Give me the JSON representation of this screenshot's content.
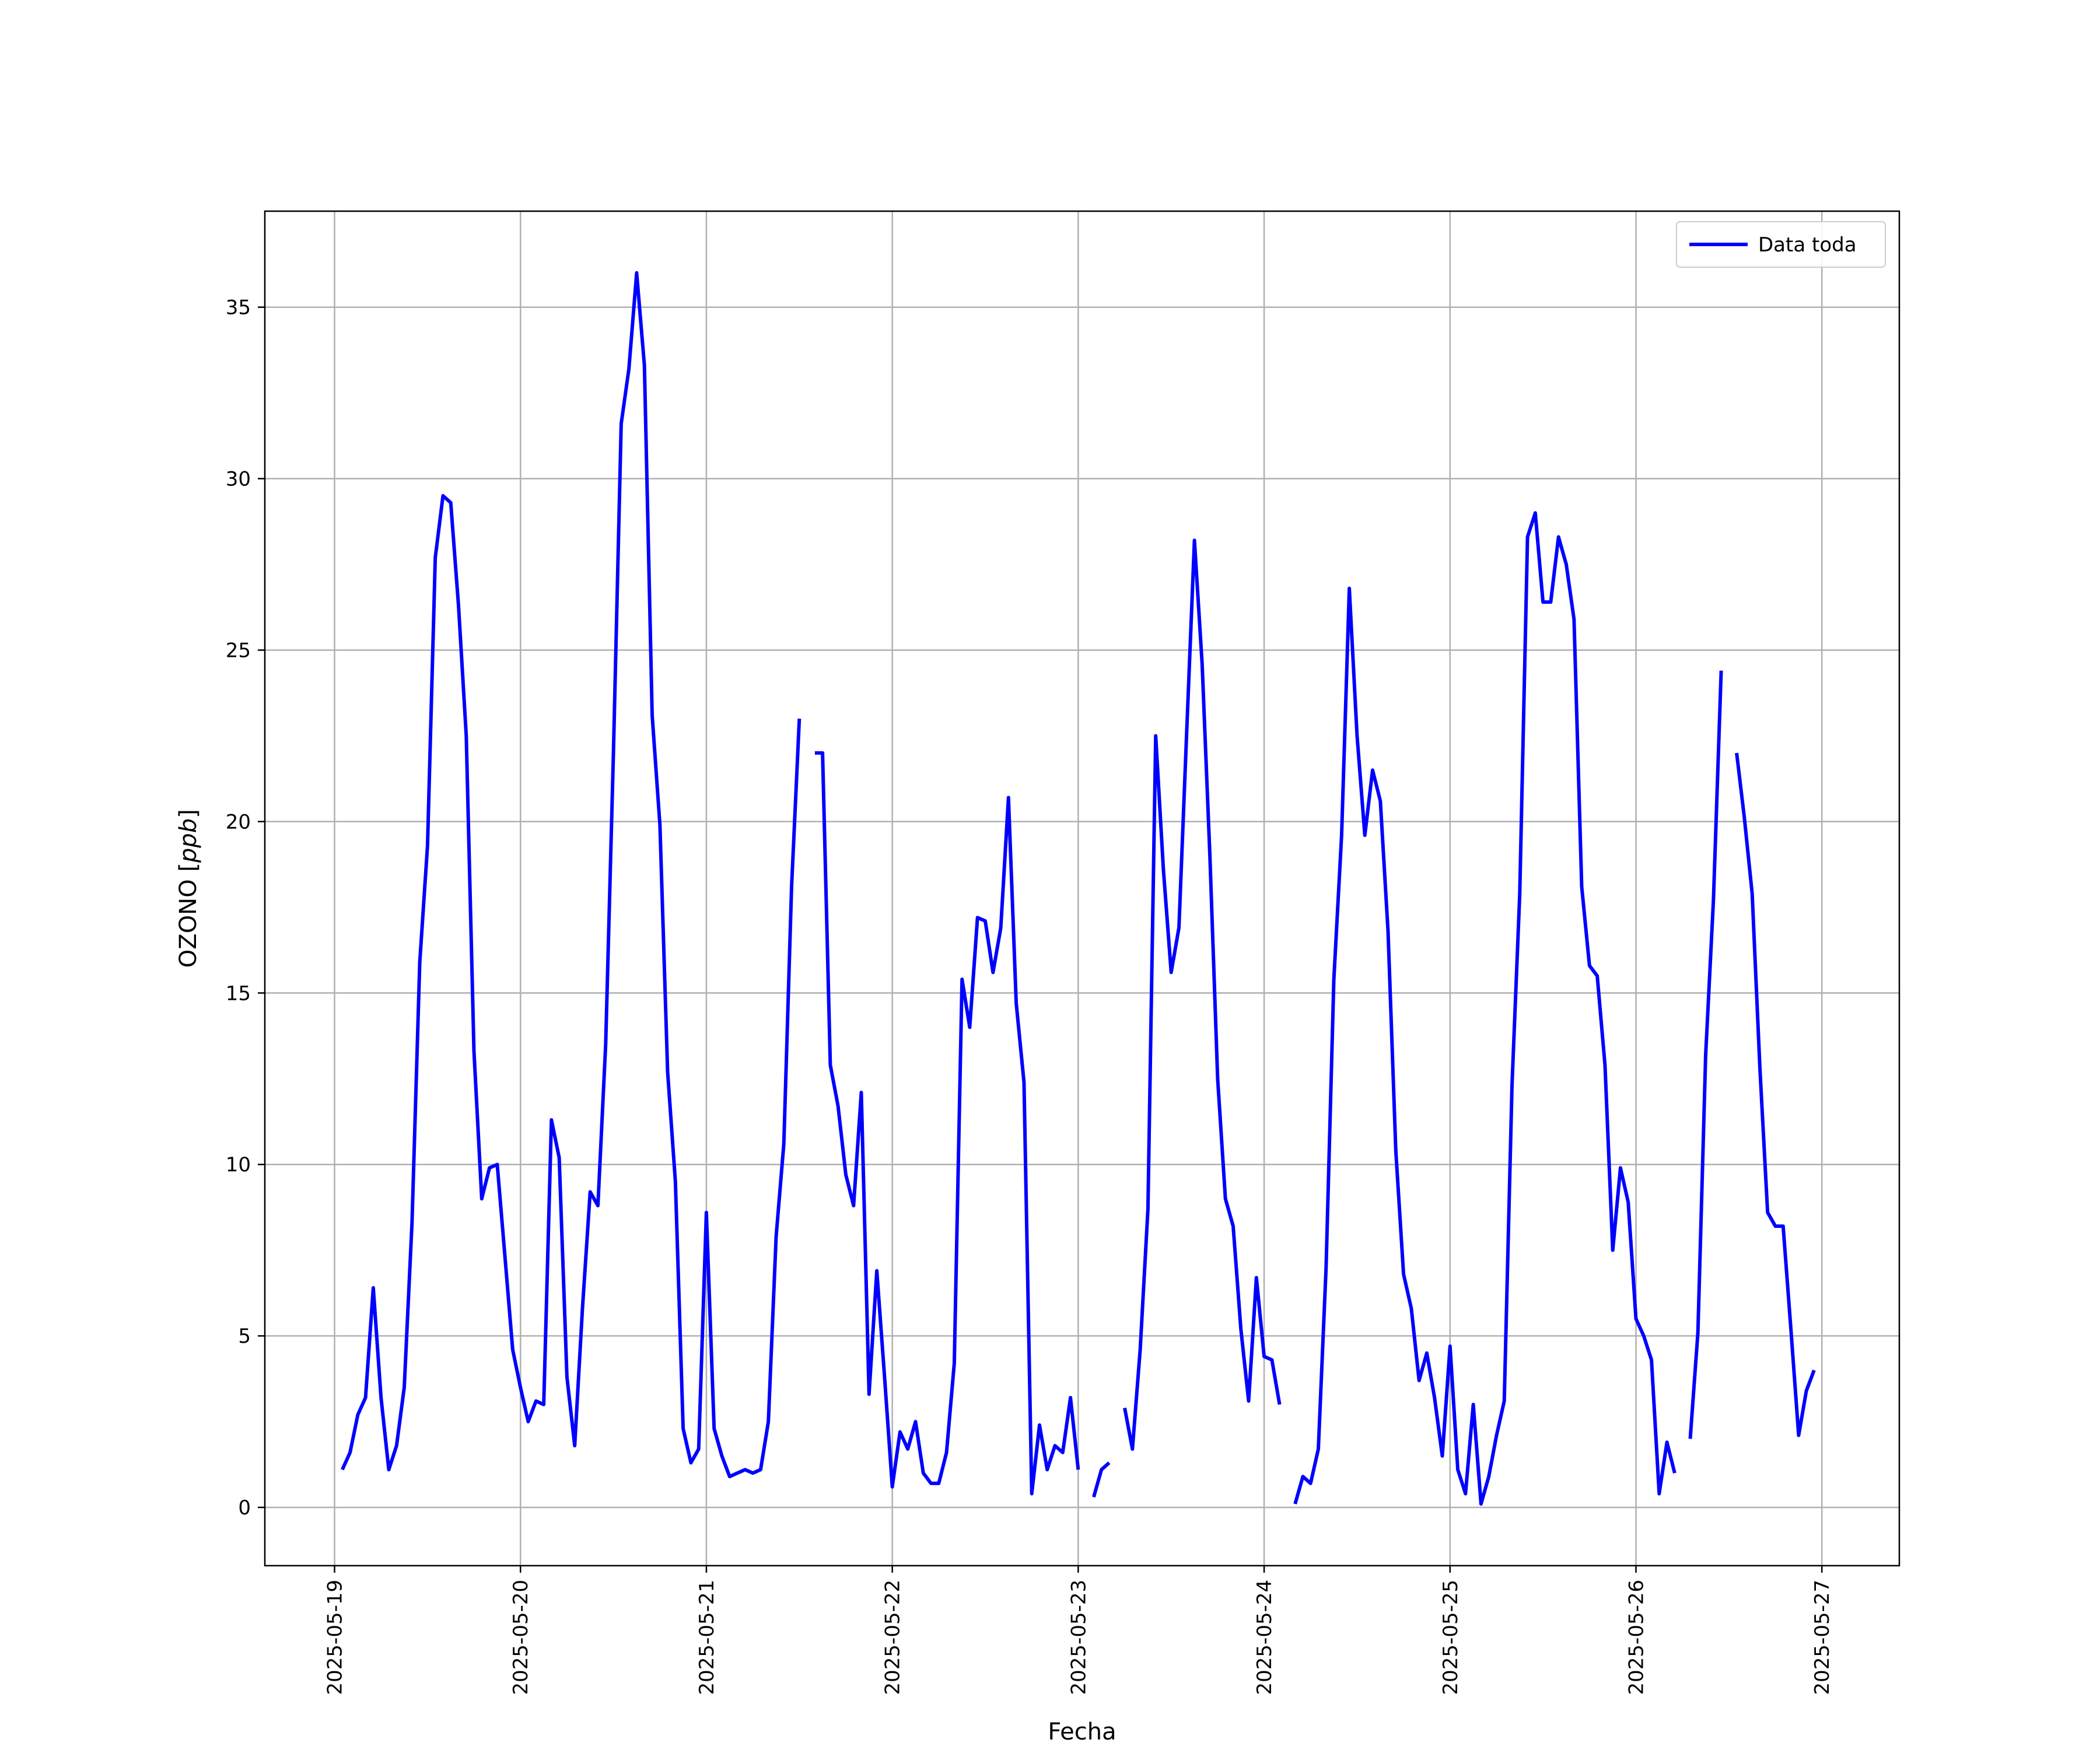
{
  "chart_data": {
    "type": "line",
    "xlabel": "Fecha",
    "ylabel_prefix": "OZONO [",
    "ylabel_unit": "ppb",
    "ylabel_suffix": "]",
    "ylim": [
      -1.7,
      37.8
    ],
    "xlim": [
      "2025-05-18 15:00",
      "2025-05-27 10:00"
    ],
    "x_ticks": [
      "2025-05-19",
      "2025-05-20",
      "2025-05-21",
      "2025-05-22",
      "2025-05-23",
      "2025-05-24",
      "2025-05-25",
      "2025-05-26",
      "2025-05-27"
    ],
    "y_ticks": [
      0,
      5,
      10,
      15,
      20,
      25,
      30,
      35
    ],
    "grid": true,
    "legend_position": "top-right",
    "color": "#0000ff",
    "series": [
      {
        "name": "Data toda",
        "start": "2025-05-19 01:00",
        "interval_hours": 1,
        "values": [
          1.1,
          1.6,
          2.7,
          3.2,
          6.4,
          3.2,
          1.1,
          1.8,
          3.5,
          8.3,
          15.9,
          19.3,
          27.7,
          29.5,
          29.3,
          26.3,
          22.5,
          13.3,
          9.0,
          9.9,
          10.0,
          7.3,
          4.6,
          3.5,
          2.5,
          3.1,
          3.0,
          11.3,
          10.2,
          3.8,
          1.8,
          5.8,
          9.2,
          8.8,
          13.5,
          22.0,
          31.6,
          33.2,
          36.0,
          33.3,
          23.1,
          19.9,
          12.7,
          9.5,
          2.3,
          1.3,
          1.7,
          8.6,
          2.3,
          1.5,
          0.9,
          1.0,
          1.1,
          1.0,
          1.1,
          2.5,
          7.9,
          10.6,
          18.1,
          23.0,
          null,
          22.0,
          22.0,
          12.9,
          11.7,
          9.7,
          8.8,
          12.1,
          3.3,
          6.9,
          3.8,
          0.6,
          2.2,
          1.7,
          2.5,
          1.0,
          0.7,
          0.7,
          1.6,
          4.2,
          15.4,
          14.0,
          17.2,
          17.1,
          15.6,
          16.9,
          20.7,
          14.7,
          12.4,
          0.4,
          2.4,
          1.1,
          1.8,
          1.6,
          3.2,
          1.1,
          null,
          0.3,
          1.1,
          1.3,
          null,
          2.9,
          1.7,
          4.6,
          8.7,
          22.5,
          18.6,
          15.6,
          16.9,
          22.6,
          28.2,
          24.6,
          19.0,
          12.5,
          9.0,
          8.2,
          5.2,
          3.1,
          6.7,
          4.4,
          4.3,
          3.0,
          null,
          0.1,
          0.9,
          0.7,
          1.7,
          7.0,
          15.4,
          19.6,
          26.8,
          22.5,
          19.6,
          21.5,
          20.6,
          16.8,
          10.4,
          6.8,
          5.8,
          3.7,
          4.5,
          3.2,
          1.5,
          4.7,
          1.1,
          0.4,
          3.0,
          0.1,
          0.9,
          2.1,
          3.1,
          12.3,
          17.9,
          28.3,
          29.0,
          26.4,
          26.4,
          28.3,
          27.5,
          25.9,
          18.1,
          15.8,
          15.5,
          12.9,
          7.5,
          9.9,
          8.9,
          5.5,
          5.0,
          4.3,
          0.4,
          1.9,
          1.0,
          null,
          2.0,
          5.1,
          13.2,
          17.7,
          24.4,
          null,
          22.0,
          20.1,
          17.9,
          12.8,
          8.6,
          8.2,
          8.2,
          5.2,
          2.1,
          3.4,
          4.0
        ]
      }
    ]
  }
}
